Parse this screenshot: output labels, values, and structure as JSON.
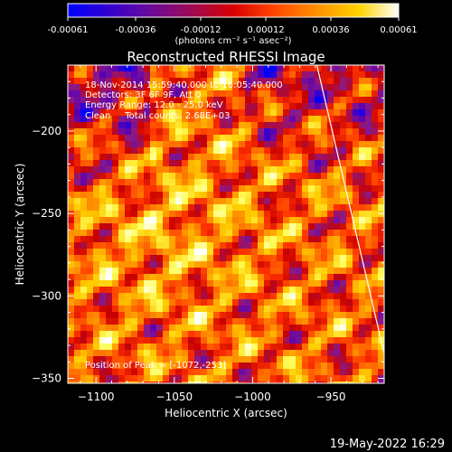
{
  "chart_data": {
    "type": "heatmap",
    "title": "Reconstructed RHESSI Image",
    "xlabel": "Heliocentric X (arcsec)",
    "ylabel": "Heliocentric Y (arcsec)",
    "xlim": [
      -1118,
      -916
    ],
    "ylim": [
      -353,
      -160
    ],
    "x_ticks": [
      -1100,
      -1050,
      -1000,
      -950
    ],
    "x_tick_labels": [
      "−1100",
      "−1050",
      "−1000",
      "−950"
    ],
    "y_ticks": [
      -200,
      -250,
      -300,
      -350
    ],
    "y_tick_labels": [
      "−200",
      "−250",
      "−300",
      "−350"
    ],
    "colorbar": {
      "range": [
        -0.00061,
        0.00061
      ],
      "ticks": [
        -0.00061,
        -0.00036,
        -0.00012,
        0.00012,
        0.00036,
        0.00061
      ],
      "tick_labels": [
        "-0.00061",
        "-0.00036",
        "-0.00012",
        "0.00012",
        "0.00036",
        "0.00061"
      ],
      "units": "(photons cm⁻² s⁻¹ asec⁻²)",
      "colormap": [
        "#0000ff",
        "#5a00b0",
        "#8a1a8a",
        "#c80000",
        "#ff3300",
        "#ff8800",
        "#ffcc00",
        "#ffff60",
        "#ffffff"
      ]
    },
    "annotations": [
      "18-Nov-2014 15:59:40.000 to 16:05:40.000",
      "Detectors: 3F 6F 9F, Att 0",
      "Energy Range: 12.0 - 25.0 keV",
      "Clean     Total counts: 2.68E+03"
    ],
    "peak_label": "Position of Peak = [-1072,-253]",
    "peak": [
      -1072,
      -253
    ],
    "limb_line": [
      [
        -959,
        -160
      ],
      [
        -916,
        -335
      ]
    ],
    "limb_color": "#ffffff"
  },
  "footer": {
    "timestamp": "19-May-2022 16:29"
  }
}
